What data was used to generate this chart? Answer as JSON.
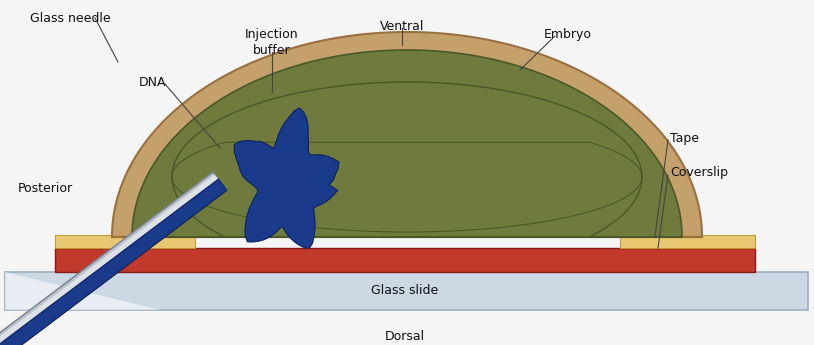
{
  "labels": {
    "glass_needle": "Glass needle",
    "dna": "DNA",
    "injection_buffer": "Injection\nbuffer",
    "ventral": "Ventral",
    "embryo": "Embryo",
    "tape": "Tape",
    "coverslip": "Coverslip",
    "posterior": "Posterior",
    "glass_slide": "Glass slide",
    "dorsal": "Dorsal"
  },
  "colors": {
    "embryo_outer": "#c4a06a",
    "embryo_outer_edge": "#9b7040",
    "embryo_inner": "#6e7b3c",
    "embryo_inner_edge": "#4a5828",
    "dna_blob": "#1a3a8c",
    "dna_blob_edge": "#0d2060",
    "tape": "#e8c870",
    "tape_edge": "#b89830",
    "red_layer": "#c0392b",
    "red_edge": "#8b1a1a",
    "glass_slide_fill": "#ccd8e4",
    "glass_slide_edge": "#9ab0c0",
    "needle_gray": "#b8c0cc",
    "needle_gray_edge": "#7a8090",
    "needle_blue": "#1a3a8c",
    "needle_blue_edge": "#0d2060",
    "bg": "#f5f5f5",
    "ann_line": "#444444",
    "text": "#111111"
  },
  "font_size": 9
}
